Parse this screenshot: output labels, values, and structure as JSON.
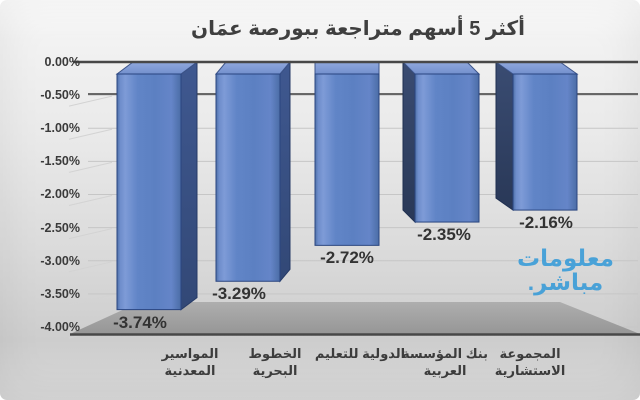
{
  "title": "أكثر 5 أسهم متراجعة ببورصة عمَان",
  "watermark": {
    "line1": "معلومات",
    "line2": "مباشر.",
    "color": "#3f9ed8"
  },
  "chart_data": {
    "type": "bar",
    "style": "3d-column",
    "title": "أكثر 5 أسهم متراجعة ببورصة عمَان",
    "categories": [
      "المواسير المعدنية",
      "الخطوط البحرية",
      "الدولية للتعليم",
      "بنك المؤسسة العربية",
      "المجموعة الاستشارية"
    ],
    "category_label_lines": [
      [
        "المواسير",
        "المعدنية"
      ],
      [
        "الخطوط",
        "البحرية"
      ],
      [
        "الدولية للتعليم"
      ],
      [
        "بنك المؤسسة",
        "العربية"
      ],
      [
        "المجموعة",
        "الاستشارية"
      ]
    ],
    "values": [
      -3.74,
      -3.29,
      -2.72,
      -2.35,
      -2.16
    ],
    "data_labels": [
      "-3.74%",
      "-3.29%",
      "-2.72%",
      "-2.35%",
      "-2.16%"
    ],
    "yticks": [
      "0.00%",
      "-0.50%",
      "-1.00%",
      "-1.50%",
      "-2.00%",
      "-2.50%",
      "-3.00%",
      "-3.50%",
      "-4.00%"
    ],
    "ylim": [
      -4.0,
      0.0
    ],
    "ytick_step": 0.5,
    "grid": true,
    "legend": false,
    "bar_color": "#5c80c2",
    "bar_top_color": "#8aa3da",
    "bar_side_right_color": "#3c5488",
    "bar_side_left_color": "#2d3d60",
    "axis_color": "#484848",
    "gridline_color": "#c6c6c6",
    "floor_color": "#a3a3a3"
  }
}
